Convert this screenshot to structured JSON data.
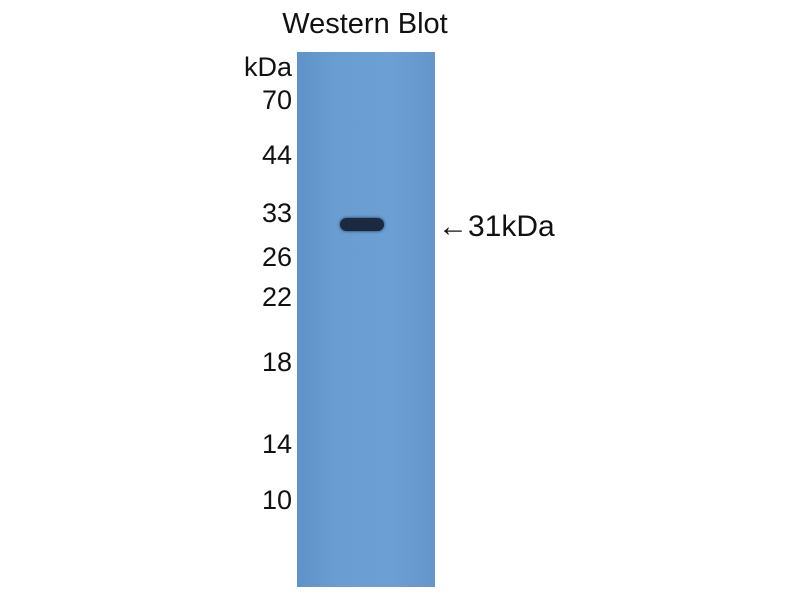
{
  "title": "Western Blot",
  "unit_label": "kDa",
  "markers": [
    "70",
    "44",
    "33",
    "26",
    "22",
    "18",
    "14",
    "10"
  ],
  "annotation": "←31kDa",
  "colors": {
    "membrane": "#6a9ed2",
    "band": "#1b2a40"
  }
}
